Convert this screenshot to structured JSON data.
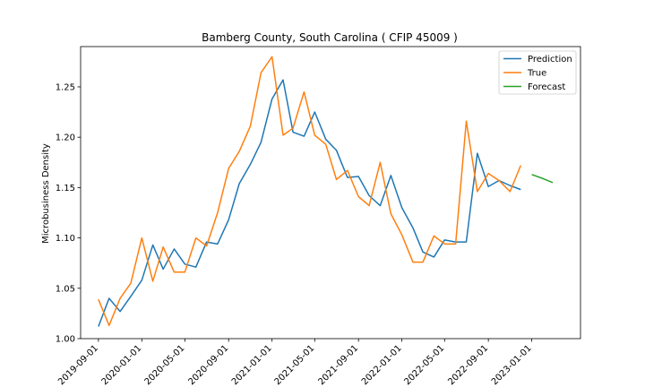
{
  "chart_data": {
    "type": "line",
    "title": "Bamberg County, South Carolina ( CFIP 45009 )",
    "xlabel": "",
    "ylabel": "Microbusiness Density",
    "ylim": [
      1.0,
      1.29
    ],
    "xlim": [
      "2019-07-13",
      "2023-05-18"
    ],
    "yticks": [
      1.0,
      1.05,
      1.1,
      1.15,
      1.2,
      1.25
    ],
    "ytick_labels": [
      "1.00",
      "1.05",
      "1.10",
      "1.15",
      "1.20",
      "1.25"
    ],
    "xticks": [
      "2019-09-01",
      "2020-01-01",
      "2020-05-01",
      "2020-09-01",
      "2021-01-01",
      "2021-05-01",
      "2021-09-01",
      "2022-01-01",
      "2022-05-01",
      "2022-09-01",
      "2023-01-01"
    ],
    "xtick_labels": [
      "2019-09-01",
      "2020-01-01",
      "2020-05-01",
      "2020-09-01",
      "2021-01-01",
      "2021-05-01",
      "2021-09-01",
      "2022-01-01",
      "2022-05-01",
      "2022-09-01",
      "2023-01-01"
    ],
    "grid": false,
    "legend_position": "top-right",
    "series": [
      {
        "name": "Prediction",
        "color": "#1f77b4",
        "x": [
          "2019-09-01",
          "2019-10-01",
          "2019-11-01",
          "2019-12-01",
          "2020-01-01",
          "2020-02-01",
          "2020-03-01",
          "2020-04-01",
          "2020-05-01",
          "2020-06-01",
          "2020-07-01",
          "2020-08-01",
          "2020-09-01",
          "2020-10-01",
          "2020-11-01",
          "2020-12-01",
          "2021-01-01",
          "2021-02-01",
          "2021-03-01",
          "2021-04-01",
          "2021-05-01",
          "2021-06-01",
          "2021-07-01",
          "2021-08-01",
          "2021-09-01",
          "2021-10-01",
          "2021-11-01",
          "2021-12-01",
          "2022-01-01",
          "2022-02-01",
          "2022-03-01",
          "2022-04-01",
          "2022-05-01",
          "2022-06-01",
          "2022-07-01",
          "2022-08-01",
          "2022-09-01",
          "2022-10-01",
          "2022-11-01",
          "2022-12-01"
        ],
        "y": [
          1.012,
          1.04,
          1.027,
          1.042,
          1.058,
          1.093,
          1.069,
          1.089,
          1.074,
          1.071,
          1.096,
          1.094,
          1.118,
          1.154,
          1.173,
          1.195,
          1.238,
          1.257,
          1.205,
          1.201,
          1.225,
          1.198,
          1.187,
          1.16,
          1.161,
          1.142,
          1.132,
          1.162,
          1.13,
          1.11,
          1.086,
          1.081,
          1.098,
          1.096,
          1.096,
          1.184,
          1.151,
          1.157,
          1.152,
          1.148
        ]
      },
      {
        "name": "True",
        "color": "#ff7f0e",
        "x": [
          "2019-09-01",
          "2019-10-01",
          "2019-11-01",
          "2019-12-01",
          "2020-01-01",
          "2020-02-01",
          "2020-03-01",
          "2020-04-01",
          "2020-05-01",
          "2020-06-01",
          "2020-07-01",
          "2020-08-01",
          "2020-09-01",
          "2020-10-01",
          "2020-11-01",
          "2020-12-01",
          "2021-01-01",
          "2021-02-01",
          "2021-03-01",
          "2021-04-01",
          "2021-05-01",
          "2021-06-01",
          "2021-07-01",
          "2021-08-01",
          "2021-09-01",
          "2021-10-01",
          "2021-11-01",
          "2021-12-01",
          "2022-01-01",
          "2022-02-01",
          "2022-03-01",
          "2022-04-01",
          "2022-05-01",
          "2022-06-01",
          "2022-07-01",
          "2022-08-01",
          "2022-09-01",
          "2022-10-01",
          "2022-11-01",
          "2022-12-01"
        ],
        "y": [
          1.039,
          1.013,
          1.04,
          1.055,
          1.1,
          1.057,
          1.091,
          1.066,
          1.066,
          1.1,
          1.092,
          1.125,
          1.169,
          1.186,
          1.211,
          1.264,
          1.28,
          1.202,
          1.209,
          1.245,
          1.202,
          1.193,
          1.158,
          1.167,
          1.141,
          1.132,
          1.175,
          1.124,
          1.103,
          1.076,
          1.076,
          1.102,
          1.094,
          1.094,
          1.216,
          1.146,
          1.164,
          1.157,
          1.146,
          1.172
        ]
      },
      {
        "name": "Forecast",
        "color": "#2ca02c",
        "x": [
          "2023-01-01",
          "2023-02-01",
          "2023-03-01"
        ],
        "y": [
          1.163,
          1.159,
          1.155
        ]
      }
    ]
  }
}
